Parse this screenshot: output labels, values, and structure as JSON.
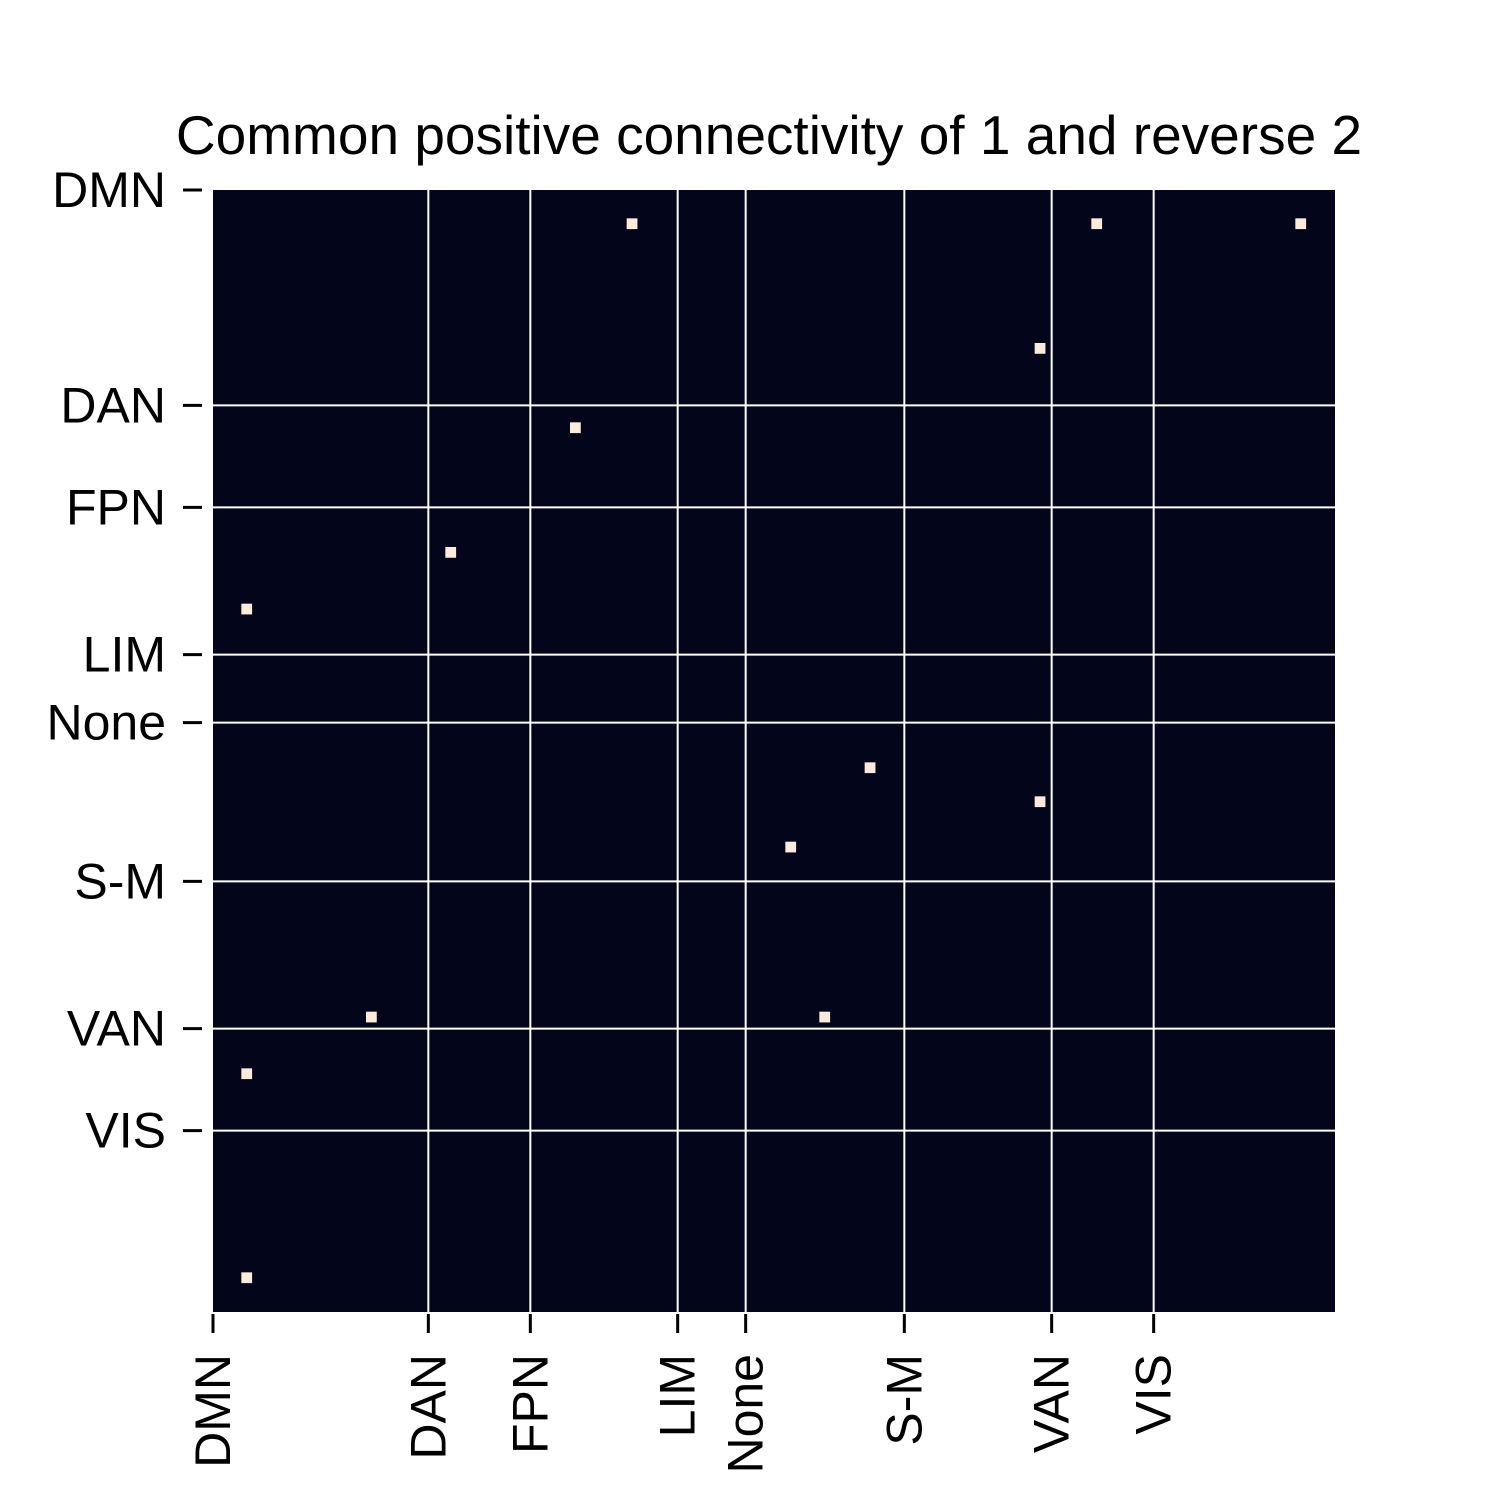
{
  "chart_data": {
    "type": "heatmap",
    "title": "Common positive connectivity of 1 and reverse 2",
    "xlabel": "",
    "ylabel": "",
    "n_regions": 198,
    "group_labels": [
      "DMN",
      "DAN",
      "FPN",
      "LIM",
      "None",
      "S-M",
      "VAN",
      "VIS"
    ],
    "group_starts": [
      0,
      38,
      56,
      82,
      94,
      122,
      148,
      166
    ],
    "cells": [
      [
        5,
        73
      ],
      [
        5,
        155
      ],
      [
        5,
        191
      ],
      [
        27,
        145
      ],
      [
        41,
        63
      ],
      [
        63,
        41
      ],
      [
        73,
        5
      ],
      [
        101,
        115
      ],
      [
        107,
        145
      ],
      [
        115,
        101
      ],
      [
        145,
        27
      ],
      [
        145,
        107
      ],
      [
        155,
        5
      ],
      [
        191,
        5
      ]
    ],
    "grid": true,
    "colorbar": false,
    "colors": {
      "background": "#03061a",
      "cell": "#faebdd",
      "gridline": "#ffffff"
    }
  }
}
